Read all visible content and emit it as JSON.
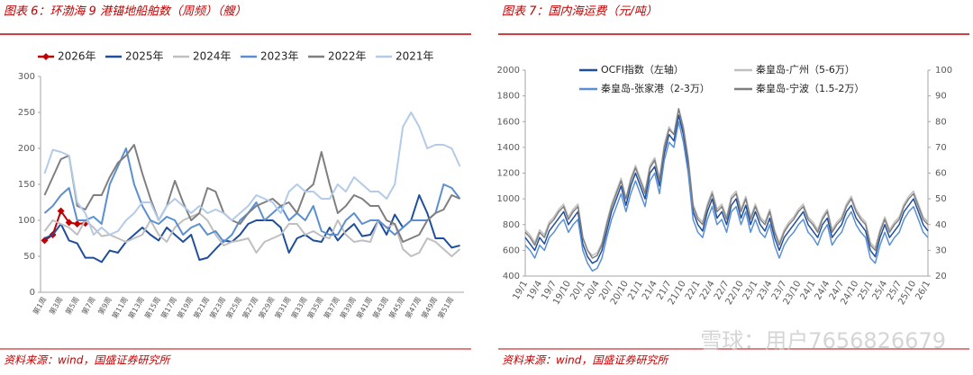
{
  "chart_data": [
    {
      "type": "line",
      "title": "图表 6：环渤海 9 港锚地船舶数（周频）（艘）",
      "note": "资料来源：wind，国盛证券研究所",
      "categories": [
        "第1周",
        null,
        "第3周",
        null,
        "第5周",
        null,
        "第7周",
        null,
        "第9周",
        null,
        "第11周",
        null,
        "第13周",
        null,
        "第15周",
        null,
        "第17周",
        null,
        "第19周",
        null,
        "第21周",
        null,
        "第23周",
        null,
        "第25周",
        null,
        "第27周",
        null,
        "第29周",
        null,
        "第31周",
        null,
        "第33周",
        null,
        "第35周",
        null,
        "第37周",
        null,
        "第39周",
        null,
        "第41周",
        null,
        "第43周",
        null,
        "第45周",
        null,
        "第47周",
        null,
        "第49周",
        null,
        "第51周",
        null
      ],
      "ylim": [
        0,
        300
      ],
      "yticks": [
        0,
        50,
        100,
        150,
        200,
        250,
        300
      ],
      "series": [
        {
          "name": "2026年",
          "color": "#c00000",
          "marker": "diamond",
          "values": [
            72,
            80,
            113,
            97,
            95,
            96,
            null,
            null,
            null,
            null,
            null,
            null,
            null,
            null,
            null,
            null,
            null,
            null,
            null,
            null,
            null,
            null,
            null,
            null,
            null,
            null,
            null,
            null,
            null,
            null,
            null,
            null,
            null,
            null,
            null,
            null,
            null,
            null,
            null,
            null,
            null,
            null,
            null,
            null,
            null,
            null,
            null,
            null,
            null,
            null,
            null,
            null
          ]
        },
        {
          "name": "2025年",
          "color": "#1f4e9c",
          "values": [
            75,
            80,
            95,
            72,
            68,
            48,
            48,
            42,
            58,
            55,
            70,
            80,
            90,
            80,
            72,
            90,
            80,
            70,
            80,
            45,
            48,
            60,
            72,
            70,
            80,
            95,
            100,
            100,
            100,
            90,
            55,
            75,
            80,
            72,
            70,
            90,
            72,
            85,
            95,
            78,
            80,
            100,
            80,
            108,
            90,
            100,
            135,
            110,
            75,
            75,
            62,
            65
          ]
        },
        {
          "name": "2024年",
          "color": "#bfbfbf",
          "values": [
            85,
            100,
            95,
            90,
            80,
            100,
            90,
            78,
            80,
            75,
            70,
            75,
            80,
            100,
            80,
            70,
            90,
            100,
            105,
            110,
            100,
            80,
            65,
            70,
            72,
            75,
            55,
            70,
            75,
            80,
            95,
            95,
            80,
            85,
            78,
            75,
            100,
            80,
            70,
            72,
            70,
            100,
            90,
            95,
            60,
            50,
            55,
            75,
            70,
            60,
            50,
            60
          ]
        },
        {
          "name": "2023年",
          "color": "#5b8fd1",
          "values": [
            110,
            120,
            135,
            145,
            100,
            100,
            105,
            95,
            150,
            175,
            200,
            150,
            120,
            100,
            95,
            105,
            100,
            80,
            90,
            95,
            80,
            85,
            70,
            80,
            100,
            110,
            125,
            100,
            110,
            120,
            100,
            110,
            100,
            120,
            85,
            80,
            80,
            100,
            110,
            95,
            100,
            100,
            90,
            80,
            90,
            100,
            100,
            100,
            110,
            150,
            145,
            130
          ]
        },
        {
          "name": "2022年",
          "color": "#7f7f7f",
          "values": [
            135,
            160,
            185,
            190,
            120,
            115,
            135,
            135,
            160,
            180,
            190,
            205,
            165,
            130,
            100,
            120,
            155,
            125,
            100,
            110,
            145,
            140,
            110,
            100,
            95,
            110,
            120,
            125,
            130,
            120,
            125,
            110,
            140,
            150,
            195,
            150,
            110,
            120,
            135,
            130,
            120,
            120,
            100,
            95,
            70,
            75,
            80,
            100,
            110,
            115,
            135,
            130
          ]
        },
        {
          "name": "2021年",
          "color": "#b4cbe8",
          "values": [
            165,
            198,
            195,
            190,
            125,
            110,
            80,
            90,
            80,
            85,
            100,
            110,
            125,
            125,
            100,
            120,
            130,
            120,
            110,
            120,
            110,
            115,
            110,
            100,
            110,
            120,
            135,
            130,
            125,
            110,
            140,
            150,
            140,
            140,
            130,
            130,
            150,
            140,
            160,
            150,
            140,
            140,
            130,
            150,
            230,
            250,
            230,
            200,
            205,
            205,
            200,
            175
          ]
        }
      ]
    },
    {
      "type": "line",
      "title": "图表 7：国内海运费（元/吨）",
      "note": "资料来源：wind，国盛证券研究所",
      "categories": [
        "19/1",
        null,
        null,
        "19/4",
        null,
        null,
        "19/7",
        null,
        null,
        "19/10",
        null,
        null,
        "20/1",
        null,
        null,
        "20/4",
        null,
        null,
        "20/7",
        null,
        null,
        "20/10",
        null,
        null,
        "21/1",
        null,
        null,
        "21/4",
        null,
        null,
        "21/7",
        null,
        null,
        "21/10",
        null,
        null,
        "22/1",
        null,
        null,
        "22/4",
        null,
        null,
        "22/7",
        null,
        null,
        "22/10",
        null,
        null,
        "23/1",
        null,
        null,
        "23/4",
        null,
        null,
        "23/7",
        null,
        null,
        "23/10",
        null,
        null,
        "24/1",
        null,
        null,
        "24/4",
        null,
        null,
        "24/7",
        null,
        null,
        "24/10",
        null,
        null,
        "25/1",
        null,
        null,
        "25/4",
        null,
        null,
        "25/7",
        null,
        null,
        "25/10",
        null,
        null,
        "26/1"
      ],
      "ylim": [
        400,
        2000
      ],
      "yticks": [
        400,
        600,
        800,
        1000,
        1200,
        1400,
        1600,
        1800,
        2000
      ],
      "y2lim": [
        20,
        100
      ],
      "y2ticks": [
        20,
        30,
        40,
        50,
        60,
        70,
        80,
        90,
        100
      ],
      "series": [
        {
          "name": "OCFI指数（左轴）",
          "color": "#1f4e9c",
          "values": [
            700,
            650,
            600,
            700,
            650,
            750,
            800,
            850,
            900,
            800,
            850,
            900,
            650,
            550,
            500,
            520,
            600,
            750,
            900,
            1000,
            1100,
            950,
            1100,
            1200,
            1100,
            1000,
            1200,
            1250,
            1100,
            1350,
            1500,
            1450,
            1650,
            1500,
            1250,
            900,
            800,
            750,
            900,
            1000,
            850,
            900,
            800,
            950,
            1000,
            850,
            950,
            800,
            900,
            800,
            750,
            850,
            700,
            600,
            700,
            750,
            800,
            850,
            900,
            800,
            750,
            700,
            800,
            850,
            700,
            750,
            800,
            900,
            950,
            850,
            800,
            750,
            600,
            550,
            700,
            800,
            700,
            750,
            800,
            900,
            950,
            1000,
            900,
            800,
            750
          ]
        },
        {
          "name": "秦皇岛-广州（5-6万）",
          "color": "#bfbfbf",
          "axis": "y2",
          "values": [
            38,
            36,
            33,
            38,
            36,
            41,
            43,
            46,
            48,
            43,
            46,
            48,
            35,
            30,
            28,
            29,
            33,
            41,
            48,
            53,
            58,
            50,
            58,
            63,
            58,
            53,
            63,
            66,
            58,
            71,
            78,
            75,
            85,
            78,
            66,
            48,
            43,
            41,
            48,
            53,
            46,
            48,
            43,
            51,
            53,
            46,
            51,
            43,
            48,
            43,
            41,
            46,
            38,
            33,
            38,
            41,
            43,
            46,
            48,
            43,
            41,
            38,
            43,
            46,
            38,
            41,
            43,
            48,
            51,
            46,
            43,
            41,
            33,
            31,
            38,
            43,
            38,
            41,
            43,
            48,
            51,
            53,
            48,
            43,
            41
          ]
        },
        {
          "name": "秦皇岛-张家港（2-3万）",
          "color": "#5b8fd1",
          "axis": "y2",
          "values": [
            32,
            30,
            27,
            32,
            30,
            35,
            37,
            40,
            42,
            37,
            40,
            42,
            30,
            25,
            22,
            23,
            27,
            35,
            42,
            47,
            52,
            45,
            52,
            57,
            52,
            47,
            57,
            60,
            52,
            65,
            72,
            70,
            80,
            72,
            60,
            42,
            37,
            35,
            42,
            47,
            40,
            42,
            37,
            45,
            47,
            40,
            45,
            37,
            42,
            37,
            35,
            40,
            32,
            27,
            32,
            35,
            37,
            40,
            42,
            37,
            35,
            32,
            37,
            40,
            32,
            35,
            37,
            42,
            45,
            40,
            37,
            35,
            27,
            25,
            32,
            37,
            32,
            35,
            37,
            42,
            45,
            47,
            42,
            37,
            35
          ]
        },
        {
          "name": "秦皇岛-宁波（1.5-2万）",
          "color": "#7f7f7f",
          "axis": "y2",
          "values": [
            37,
            35,
            32,
            37,
            35,
            40,
            42,
            45,
            47,
            42,
            45,
            47,
            35,
            30,
            27,
            28,
            32,
            40,
            47,
            52,
            57,
            50,
            57,
            62,
            57,
            52,
            62,
            65,
            57,
            70,
            77,
            75,
            85,
            77,
            65,
            47,
            42,
            40,
            47,
            52,
            45,
            47,
            42,
            50,
            52,
            45,
            50,
            42,
            47,
            42,
            40,
            45,
            37,
            32,
            37,
            40,
            42,
            45,
            47,
            42,
            40,
            37,
            42,
            45,
            37,
            40,
            42,
            47,
            50,
            45,
            42,
            40,
            32,
            30,
            37,
            42,
            37,
            40,
            42,
            47,
            50,
            52,
            47,
            42,
            40
          ]
        }
      ]
    }
  ],
  "watermark": "雪球：用户7656826679"
}
